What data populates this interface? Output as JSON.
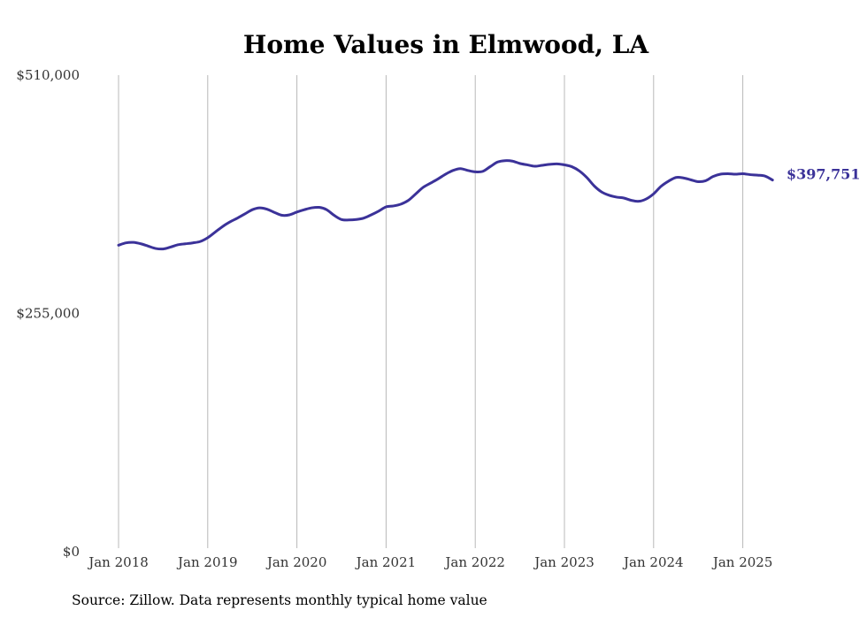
{
  "chart_data": {
    "type": "line",
    "title": "Home Values in Elmwood, LA",
    "source": "Source: Zillow. Data represents monthly typical home value",
    "ylim": [
      0,
      510000
    ],
    "y_ticks": [
      {
        "value": 0,
        "label": "$0"
      },
      {
        "value": 255000,
        "label": "$255,000"
      },
      {
        "value": 510000,
        "label": "$510,000"
      }
    ],
    "x_ticks": [
      {
        "value": "2018-01",
        "label": "Jan 2018"
      },
      {
        "value": "2019-01",
        "label": "Jan 2019"
      },
      {
        "value": "2020-01",
        "label": "Jan 2020"
      },
      {
        "value": "2021-01",
        "label": "Jan 2021"
      },
      {
        "value": "2022-01",
        "label": "Jan 2022"
      },
      {
        "value": "2023-01",
        "label": "Jan 2023"
      },
      {
        "value": "2024-01",
        "label": "Jan 2024"
      },
      {
        "value": "2025-01",
        "label": "Jan 2025"
      }
    ],
    "grid": {
      "vertical": true,
      "horizontal": false
    },
    "line_color": "#3b3299",
    "end_label": "$397,751",
    "series": [
      {
        "x": [
          "2018-01",
          "2018-02",
          "2018-03",
          "2018-04",
          "2018-05",
          "2018-06",
          "2018-07",
          "2018-08",
          "2018-09",
          "2018-10",
          "2018-11",
          "2018-12",
          "2019-01",
          "2019-02",
          "2019-03",
          "2019-04",
          "2019-05",
          "2019-06",
          "2019-07",
          "2019-08",
          "2019-09",
          "2019-10",
          "2019-11",
          "2019-12",
          "2020-01",
          "2020-02",
          "2020-03",
          "2020-04",
          "2020-05",
          "2020-06",
          "2020-07",
          "2020-08",
          "2020-09",
          "2020-10",
          "2020-11",
          "2020-12",
          "2021-01",
          "2021-02",
          "2021-03",
          "2021-04",
          "2021-05",
          "2021-06",
          "2021-07",
          "2021-08",
          "2021-09",
          "2021-10",
          "2021-11",
          "2021-12",
          "2022-01",
          "2022-02",
          "2022-03",
          "2022-04",
          "2022-05",
          "2022-06",
          "2022-07",
          "2022-08",
          "2022-09",
          "2022-10",
          "2022-11",
          "2022-12",
          "2023-01",
          "2023-02",
          "2023-03",
          "2023-04",
          "2023-05",
          "2023-06",
          "2023-07",
          "2023-08",
          "2023-09",
          "2023-10",
          "2023-11",
          "2023-12",
          "2024-01",
          "2024-02",
          "2024-03",
          "2024-04",
          "2024-05",
          "2024-06",
          "2024-07",
          "2024-08",
          "2024-09",
          "2024-10",
          "2024-11",
          "2024-12",
          "2025-01",
          "2025-02",
          "2025-03",
          "2025-04",
          "2025-05"
        ],
        "values": [
          328000,
          330500,
          331000,
          329500,
          327000,
          324500,
          324000,
          326000,
          328500,
          329500,
          330500,
          332000,
          336000,
          342000,
          348000,
          353000,
          357000,
          361500,
          366000,
          368000,
          366500,
          363000,
          360000,
          360500,
          363500,
          366000,
          368000,
          368500,
          366000,
          360000,
          355500,
          355000,
          355500,
          357000,
          360500,
          364500,
          369000,
          370000,
          372000,
          376000,
          383000,
          390000,
          394500,
          399000,
          404000,
          408000,
          410000,
          408000,
          406500,
          407000,
          412000,
          417000,
          418500,
          418000,
          415500,
          414000,
          412500,
          413500,
          414500,
          415000,
          414000,
          412000,
          407500,
          400500,
          391500,
          385000,
          381500,
          379500,
          378500,
          376000,
          375000,
          377500,
          383000,
          391000,
          396500,
          400500,
          400000,
          398000,
          396000,
          397000,
          401500,
          404000,
          404500,
          404000,
          404500,
          403500,
          403000,
          402000,
          397751
        ]
      }
    ]
  }
}
